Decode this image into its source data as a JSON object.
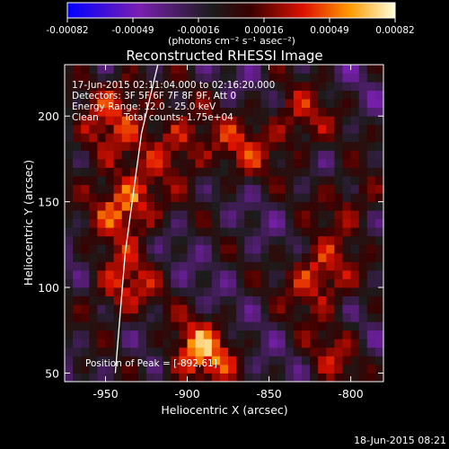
{
  "chart_data": {
    "type": "heatmap",
    "title": "Reconstructed RHESSI Image",
    "xlabel": "Heliocentric X (arcsec)",
    "ylabel": "Heliocentric Y (arcsec)",
    "xlim": [
      -975,
      -780
    ],
    "ylim": [
      45,
      230
    ],
    "x_ticks": [
      -950,
      -900,
      -850,
      -800
    ],
    "y_ticks": [
      50,
      100,
      150,
      200
    ],
    "colorbar": {
      "range": [
        -0.00082,
        0.00082
      ],
      "ticks": [
        "-0.00082",
        "-0.00049",
        "-0.00016",
        "0.00016",
        "0.00049",
        "0.00082"
      ],
      "unit_label": "(photons cm⁻² s⁻¹ asec⁻²)"
    },
    "annotations": [
      "17-Jun-2015 02:11:04.000 to 02:16:20.000",
      "Detectors: 3F 5F 6F 7F 8F 9F, Att 0",
      "Energy Range: 12.0 - 25.0 keV",
      "Clean",
      "Total counts: 1.75e+04"
    ],
    "peak_label": "Position of Peak = [-892,61]",
    "sources": [
      {
        "x": -937,
        "y": 148,
        "intensity": 0.00082
      },
      {
        "x": -892,
        "y": 61,
        "intensity": 0.00082
      },
      {
        "x": -820,
        "y": 106,
        "intensity": 0.0007
      },
      {
        "x": -940,
        "y": 100,
        "intensity": 0.0006
      },
      {
        "x": -905,
        "y": 185,
        "intensity": 0.00055
      },
      {
        "x": -832,
        "y": 197,
        "intensity": 0.0005
      },
      {
        "x": -938,
        "y": 210,
        "intensity": 0.00045
      },
      {
        "x": -868,
        "y": 180,
        "intensity": 0.00045
      },
      {
        "x": -955,
        "y": 185,
        "intensity": 0.0004
      },
      {
        "x": -800,
        "y": 150,
        "intensity": 0.0004
      },
      {
        "x": -810,
        "y": 60,
        "intensity": 0.00035
      }
    ],
    "limb_curve": [
      [
        -944,
        50
      ],
      [
        -938,
        120
      ],
      [
        -928,
        190
      ],
      [
        -918,
        230
      ]
    ],
    "grid": false
  },
  "timestamp": "18-Jun-2015 08:21"
}
